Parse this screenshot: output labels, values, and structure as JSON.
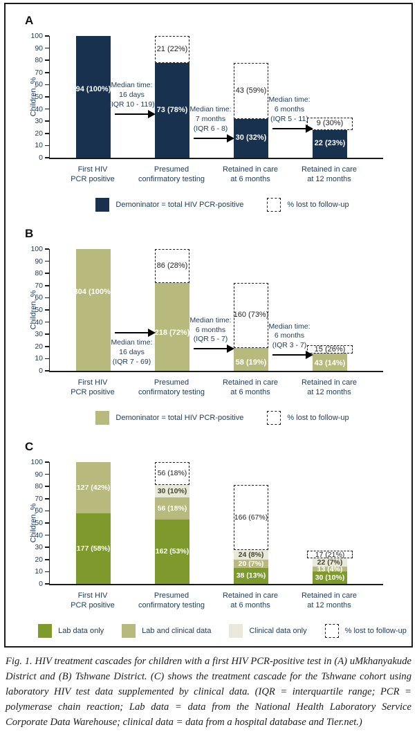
{
  "figure": {
    "caption": "Fig. 1. HIV treatment cascades for children with a first HIV PCR-positive test in (A) uMkhanyakude District and (B) Tshwane District. (C) shows the treatment cascade for the Tshwane cohort using laboratory HIV test data supplemented by clinical data. (IQR = interquartile range; PCR = polymerase chain reaction; Lab data = data from the National Health Laboratory Service Corporate Data Warehouse; clinical data = data from a hospital database and Tier.net.)"
  },
  "colors": {
    "navy": "#17314f",
    "olive": "#b7ba7c",
    "green": "#7e9a2d",
    "cream": "#e9e9d9",
    "chart_text": "#1b3a5c",
    "dashed_text": "#222222",
    "axis": "#1a1a1a"
  },
  "chart_data": [
    {
      "panel": "A",
      "type": "bar",
      "ylabel": "Children, %",
      "ylim": [
        0,
        100
      ],
      "ytick_step": 10,
      "grid": false,
      "categories": [
        [
          "First HIV",
          "PCR positive"
        ],
        [
          "Presumed",
          "confirmatory testing"
        ],
        [
          "Retained in care",
          "at 6 months"
        ],
        [
          "Retained in care",
          "at 12 months"
        ]
      ],
      "bars": [
        {
          "segments": [
            {
              "color": "navy",
              "from": 0,
              "to": 100,
              "label": "94 (100%)",
              "label_at": 56
            }
          ]
        },
        {
          "segments": [
            {
              "color": "navy",
              "from": 0,
              "to": 78,
              "label": "73 (78%)"
            }
          ],
          "dashed": {
            "from": 78,
            "to": 100,
            "label": "21 (22%)"
          }
        },
        {
          "segments": [
            {
              "color": "navy",
              "from": 0,
              "to": 32,
              "label": "30 (32%)"
            }
          ],
          "dashed": {
            "from": 32,
            "to": 78,
            "label": "43 (59%)"
          }
        },
        {
          "segments": [
            {
              "color": "navy",
              "from": 0,
              "to": 23,
              "label": "22 (23%)"
            }
          ],
          "dashed": {
            "from": 23,
            "to": 33,
            "label": "9 (30%)",
            "wide": true
          }
        }
      ],
      "arrows": [
        {
          "from_bar": 0,
          "to_bar": 1,
          "y": 36,
          "lines": [
            "Median time:",
            "16 days",
            "(IQR 10 - 119)"
          ],
          "text_side": "above"
        },
        {
          "from_bar": 1,
          "to_bar": 2,
          "y": 16,
          "lines": [
            "Median time:",
            "7 months",
            "(IQR 6 - 8)"
          ],
          "text_side": "above"
        },
        {
          "from_bar": 2,
          "to_bar": 3,
          "y": 24,
          "lines": [
            "Median time:",
            "6 months",
            "(IQR 5 - 11)"
          ],
          "text_side": "above"
        }
      ],
      "legend": [
        {
          "swatch": "navy",
          "label": "Demoninator = total HIV PCR-positive"
        },
        {
          "swatch": "dashed",
          "label": "% lost to follow-up"
        }
      ]
    },
    {
      "panel": "B",
      "type": "bar",
      "ylabel": "Children, %",
      "ylim": [
        0,
        100
      ],
      "ytick_step": 10,
      "grid": false,
      "categories": [
        [
          "First HIV",
          "PCR positive"
        ],
        [
          "Presumed",
          "confirmatory testing"
        ],
        [
          "Retained in care",
          "at 6 months"
        ],
        [
          "Retained in care",
          "at 12 months"
        ]
      ],
      "bars": [
        {
          "segments": [
            {
              "color": "olive",
              "from": 0,
              "to": 100,
              "label": "304 (100%)",
              "label_at": 65
            }
          ]
        },
        {
          "segments": [
            {
              "color": "olive",
              "from": 0,
              "to": 72,
              "label": "218 (72%)",
              "label_at": 31
            }
          ],
          "dashed": {
            "from": 72,
            "to": 100,
            "label": "86 (28%)"
          }
        },
        {
          "segments": [
            {
              "color": "olive",
              "from": 0,
              "to": 19,
              "label": "58 (19%)",
              "label_at": 7
            }
          ],
          "dashed": {
            "from": 19,
            "to": 72,
            "label": "160 (73%)"
          }
        },
        {
          "segments": [
            {
              "color": "olive",
              "from": 0,
              "to": 14,
              "label": "43 (14%)",
              "label_at": 6
            }
          ],
          "dashed": {
            "from": 14,
            "to": 21,
            "label": "15 (26%)",
            "wide": true
          }
        }
      ],
      "arrows": [
        {
          "from_bar": 0,
          "to_bar": 1,
          "y": 31,
          "lines": [
            "Median time:",
            "16 days",
            "(IQR 7 - 69)"
          ],
          "text_side": "below"
        },
        {
          "from_bar": 1,
          "to_bar": 2,
          "y": 18,
          "lines": [
            "Median time:",
            "6 months",
            "(IQR 5 - 7)"
          ],
          "text_side": "above"
        },
        {
          "from_bar": 2,
          "to_bar": 3,
          "y": 13,
          "lines": [
            "Median time:",
            "6 months",
            "(IQR 3 - 7)"
          ],
          "text_side": "above"
        }
      ],
      "legend": [
        {
          "swatch": "olive",
          "label": "Demoninator = total HIV PCR-positive"
        },
        {
          "swatch": "dashed",
          "label": "% lost to follow-up"
        }
      ]
    },
    {
      "panel": "C",
      "type": "bar",
      "stacked": true,
      "ylabel": "Children, %",
      "ylim": [
        0,
        100
      ],
      "ytick_step": 10,
      "grid": false,
      "categories": [
        [
          "First HIV",
          "PCR positive"
        ],
        [
          "Presumed",
          "confirmatory testing"
        ],
        [
          "Retained in care",
          "at 6 months"
        ],
        [
          "Retained in care",
          "at 12 months"
        ]
      ],
      "bars": [
        {
          "segments": [
            {
              "color": "green",
              "from": 0,
              "to": 58,
              "label": "177 (58%)"
            },
            {
              "color": "olive",
              "from": 58,
              "to": 100,
              "label": "127 (42%)"
            }
          ]
        },
        {
          "segments": [
            {
              "color": "green",
              "from": 0,
              "to": 53,
              "label": "162 (53%)"
            },
            {
              "color": "olive",
              "from": 53,
              "to": 71,
              "label": "56 (18%)"
            },
            {
              "color": "cream",
              "from": 71,
              "to": 81,
              "label": "30 (10%)"
            }
          ],
          "dashed": {
            "from": 81,
            "to": 100,
            "label": "56 (18%)"
          }
        },
        {
          "segments": [
            {
              "color": "green",
              "from": 0,
              "to": 13,
              "label": "38 (13%)"
            },
            {
              "color": "olive",
              "from": 13,
              "to": 20,
              "label": "20 (7%)"
            },
            {
              "color": "cream",
              "from": 20,
              "to": 28,
              "label": "24 (8%)"
            }
          ],
          "dashed": {
            "from": 28,
            "to": 81,
            "label": "166 (67%)"
          }
        },
        {
          "segments": [
            {
              "color": "green",
              "from": 0,
              "to": 10,
              "label": "30 (10%)"
            },
            {
              "color": "olive",
              "from": 10,
              "to": 14,
              "label": "13 (4%)"
            },
            {
              "color": "cream",
              "from": 14,
              "to": 21,
              "label": "22 (7%)"
            }
          ],
          "dashed": {
            "from": 21,
            "to": 27,
            "label": "17 (21%)",
            "wide": true
          }
        }
      ],
      "arrows": [],
      "legend": [
        {
          "swatch": "green",
          "label": "Lab data only"
        },
        {
          "swatch": "olive",
          "label": "Lab and clinical data"
        },
        {
          "swatch": "cream",
          "label": "Clinical data only"
        },
        {
          "swatch": "dashed",
          "label": "% lost to follow-up"
        }
      ]
    }
  ]
}
